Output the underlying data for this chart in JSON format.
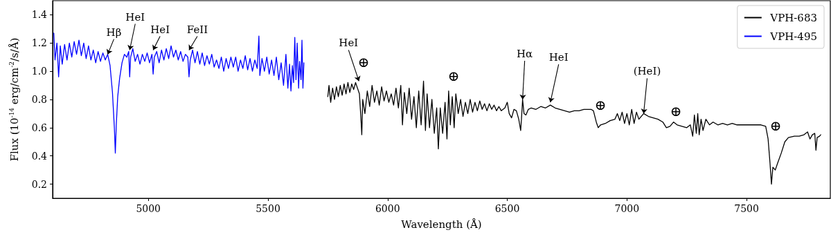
{
  "chart_data": {
    "type": "line",
    "xlabel": "Wavelength (Å)",
    "ylabel": "Flux (10$^{-14}$ erg/cm$^{-2}$/s/Å)",
    "xlim": [
      4600,
      7850
    ],
    "xticks": [
      5000,
      5500,
      6000,
      6500,
      7000,
      7500
    ],
    "ylim": [
      0.1,
      1.5
    ],
    "yticks": [
      0.2,
      0.4,
      0.6,
      0.8,
      {
        "value": 1,
        "label": "1.0"
      },
      1.2,
      1.4
    ],
    "grid": false,
    "legend": "top right",
    "marker": "none",
    "line_style": "solid",
    "series": [
      {
        "name": "VPH-683",
        "color": "#000000",
        "x": [
          5750,
          5755,
          5762,
          5770,
          5778,
          5786,
          5794,
          5802,
          5810,
          5818,
          5826,
          5834,
          5842,
          5850,
          5858,
          5866,
          5874,
          5882,
          5888,
          5892,
          5896,
          5905,
          5915,
          5925,
          5935,
          5945,
          5955,
          5965,
          5975,
          5985,
          5995,
          6005,
          6015,
          6025,
          6035,
          6045,
          6055,
          6062,
          6070,
          6080,
          6090,
          6100,
          6110,
          6120,
          6130,
          6140,
          6150,
          6158,
          6165,
          6175,
          6185,
          6195,
          6205,
          6212,
          6220,
          6230,
          6240,
          6248,
          6255,
          6262,
          6270,
          6278,
          6285,
          6295,
          6305,
          6315,
          6325,
          6335,
          6345,
          6355,
          6365,
          6375,
          6385,
          6395,
          6405,
          6415,
          6425,
          6435,
          6445,
          6455,
          6465,
          6475,
          6490,
          6500,
          6508,
          6518,
          6528,
          6538,
          6548,
          6556,
          6560,
          6564,
          6570,
          6578,
          6588,
          6600,
          6620,
          6640,
          6660,
          6680,
          6700,
          6720,
          6740,
          6760,
          6780,
          6800,
          6820,
          6850,
          6860,
          6872,
          6880,
          6890,
          6910,
          6930,
          6950,
          6960,
          6970,
          6980,
          6990,
          7000,
          7010,
          7020,
          7030,
          7040,
          7050,
          7070,
          7090,
          7110,
          7130,
          7150,
          7165,
          7180,
          7195,
          7210,
          7230,
          7250,
          7265,
          7275,
          7282,
          7290,
          7296,
          7302,
          7310,
          7318,
          7330,
          7345,
          7360,
          7380,
          7400,
          7420,
          7440,
          7460,
          7480,
          7500,
          7520,
          7540,
          7560,
          7580,
          7590,
          7598,
          7604,
          7610,
          7620,
          7630,
          7645,
          7660,
          7675,
          7700,
          7720,
          7740,
          7755,
          7765,
          7775,
          7785,
          7790,
          7795,
          7805,
          7810
        ],
        "values": [
          0.82,
          0.9,
          0.78,
          0.88,
          0.8,
          0.89,
          0.82,
          0.9,
          0.83,
          0.91,
          0.84,
          0.92,
          0.85,
          0.91,
          0.87,
          0.92,
          0.88,
          0.84,
          0.68,
          0.55,
          0.8,
          0.7,
          0.86,
          0.75,
          0.9,
          0.78,
          0.86,
          0.76,
          0.89,
          0.79,
          0.86,
          0.78,
          0.84,
          0.76,
          0.88,
          0.74,
          0.9,
          0.62,
          0.85,
          0.7,
          0.88,
          0.66,
          0.82,
          0.6,
          0.86,
          0.62,
          0.93,
          0.58,
          0.84,
          0.6,
          0.8,
          0.56,
          0.74,
          0.45,
          0.74,
          0.56,
          0.78,
          0.52,
          0.86,
          0.62,
          0.82,
          0.6,
          0.84,
          0.7,
          0.8,
          0.68,
          0.78,
          0.7,
          0.8,
          0.71,
          0.78,
          0.72,
          0.79,
          0.73,
          0.77,
          0.72,
          0.77,
          0.73,
          0.76,
          0.72,
          0.75,
          0.72,
          0.74,
          0.78,
          0.7,
          0.67,
          0.73,
          0.72,
          0.66,
          0.58,
          0.68,
          0.8,
          0.7,
          0.69,
          0.73,
          0.74,
          0.73,
          0.75,
          0.74,
          0.76,
          0.74,
          0.73,
          0.72,
          0.71,
          0.72,
          0.72,
          0.73,
          0.73,
          0.72,
          0.64,
          0.6,
          0.62,
          0.63,
          0.65,
          0.66,
          0.7,
          0.65,
          0.71,
          0.63,
          0.7,
          0.62,
          0.73,
          0.63,
          0.71,
          0.66,
          0.7,
          0.68,
          0.67,
          0.66,
          0.64,
          0.6,
          0.61,
          0.64,
          0.62,
          0.61,
          0.6,
          0.62,
          0.54,
          0.69,
          0.56,
          0.7,
          0.55,
          0.66,
          0.58,
          0.66,
          0.62,
          0.64,
          0.62,
          0.63,
          0.62,
          0.63,
          0.62,
          0.62,
          0.62,
          0.62,
          0.62,
          0.62,
          0.61,
          0.52,
          0.35,
          0.2,
          0.32,
          0.3,
          0.35,
          0.42,
          0.5,
          0.53,
          0.54,
          0.54,
          0.55,
          0.57,
          0.52,
          0.55,
          0.56,
          0.44,
          0.53,
          0.54,
          0.55
        ]
      },
      {
        "name": "VPH-495",
        "color": "#0000ff",
        "x": [
          4605,
          4610,
          4618,
          4625,
          4632,
          4640,
          4650,
          4660,
          4670,
          4680,
          4690,
          4700,
          4710,
          4720,
          4730,
          4740,
          4750,
          4760,
          4770,
          4780,
          4790,
          4800,
          4810,
          4820,
          4830,
          4840,
          4850,
          4858,
          4862,
          4866,
          4872,
          4880,
          4890,
          4900,
          4910,
          4918,
          4922,
          4926,
          4935,
          4945,
          4955,
          4965,
          4975,
          4985,
          4995,
          5005,
          5015,
          5020,
          5025,
          5035,
          5045,
          5055,
          5065,
          5075,
          5085,
          5095,
          5105,
          5115,
          5125,
          5135,
          5145,
          5155,
          5165,
          5170,
          5175,
          5185,
          5195,
          5205,
          5215,
          5225,
          5235,
          5245,
          5255,
          5265,
          5275,
          5285,
          5295,
          5305,
          5315,
          5325,
          5335,
          5345,
          5355,
          5365,
          5375,
          5385,
          5395,
          5405,
          5415,
          5425,
          5435,
          5445,
          5455,
          5462,
          5466,
          5475,
          5485,
          5495,
          5505,
          5515,
          5525,
          5535,
          5545,
          5555,
          5565,
          5575,
          5583,
          5590,
          5596,
          5602,
          5607,
          5612,
          5617,
          5622,
          5628,
          5632,
          5638,
          5642,
          5646,
          5650
        ],
        "values": [
          1.27,
          1.08,
          1.2,
          0.96,
          1.18,
          1.05,
          1.19,
          1.08,
          1.2,
          1.1,
          1.21,
          1.12,
          1.22,
          1.11,
          1.2,
          1.09,
          1.18,
          1.08,
          1.15,
          1.06,
          1.14,
          1.07,
          1.13,
          1.08,
          1.12,
          1.04,
          0.85,
          0.6,
          0.42,
          0.62,
          0.82,
          0.95,
          1.06,
          1.12,
          1.1,
          1.14,
          0.96,
          1.1,
          1.16,
          1.07,
          1.12,
          1.05,
          1.12,
          1.07,
          1.13,
          1.06,
          1.12,
          0.98,
          1.1,
          1.14,
          1.06,
          1.15,
          1.08,
          1.16,
          1.09,
          1.18,
          1.1,
          1.15,
          1.08,
          1.14,
          1.07,
          1.12,
          1.1,
          0.96,
          1.08,
          1.15,
          1.06,
          1.14,
          1.05,
          1.13,
          1.04,
          1.11,
          1.05,
          1.12,
          1.03,
          1.08,
          1.02,
          1.1,
          1.0,
          1.09,
          1.02,
          1.1,
          1.03,
          1.1,
          1.0,
          1.08,
          1.02,
          1.11,
          1.01,
          1.09,
          1.0,
          1.08,
          1.02,
          1.25,
          0.97,
          1.09,
          1.0,
          1.1,
          0.98,
          1.08,
          0.97,
          1.1,
          0.94,
          1.06,
          0.9,
          1.12,
          0.88,
          1.05,
          0.86,
          1.04,
          0.92,
          1.24,
          0.94,
          1.2,
          0.88,
          1.07,
          0.94,
          1.22,
          0.88,
          1.06
        ]
      }
    ],
    "annotations": [
      {
        "text": "Hβ",
        "x": 4830,
        "y": 1.12
      },
      {
        "text": "HeI",
        "x": 4922,
        "y": 1.15
      },
      {
        "text": "HeI",
        "x": 5020,
        "y": 1.15
      },
      {
        "text": "FeII",
        "x": 5170,
        "y": 1.15
      },
      {
        "text": "HeI",
        "x": 5880,
        "y": 0.93
      },
      {
        "text": "Hα",
        "x": 6564,
        "y": 0.8
      },
      {
        "text": "HeI",
        "x": 6680,
        "y": 0.78
      },
      {
        "text": "(HeI)",
        "x": 7070,
        "y": 0.7
      },
      "⊕",
      "⊕",
      "⊕",
      "⊕",
      "⊕"
    ]
  }
}
